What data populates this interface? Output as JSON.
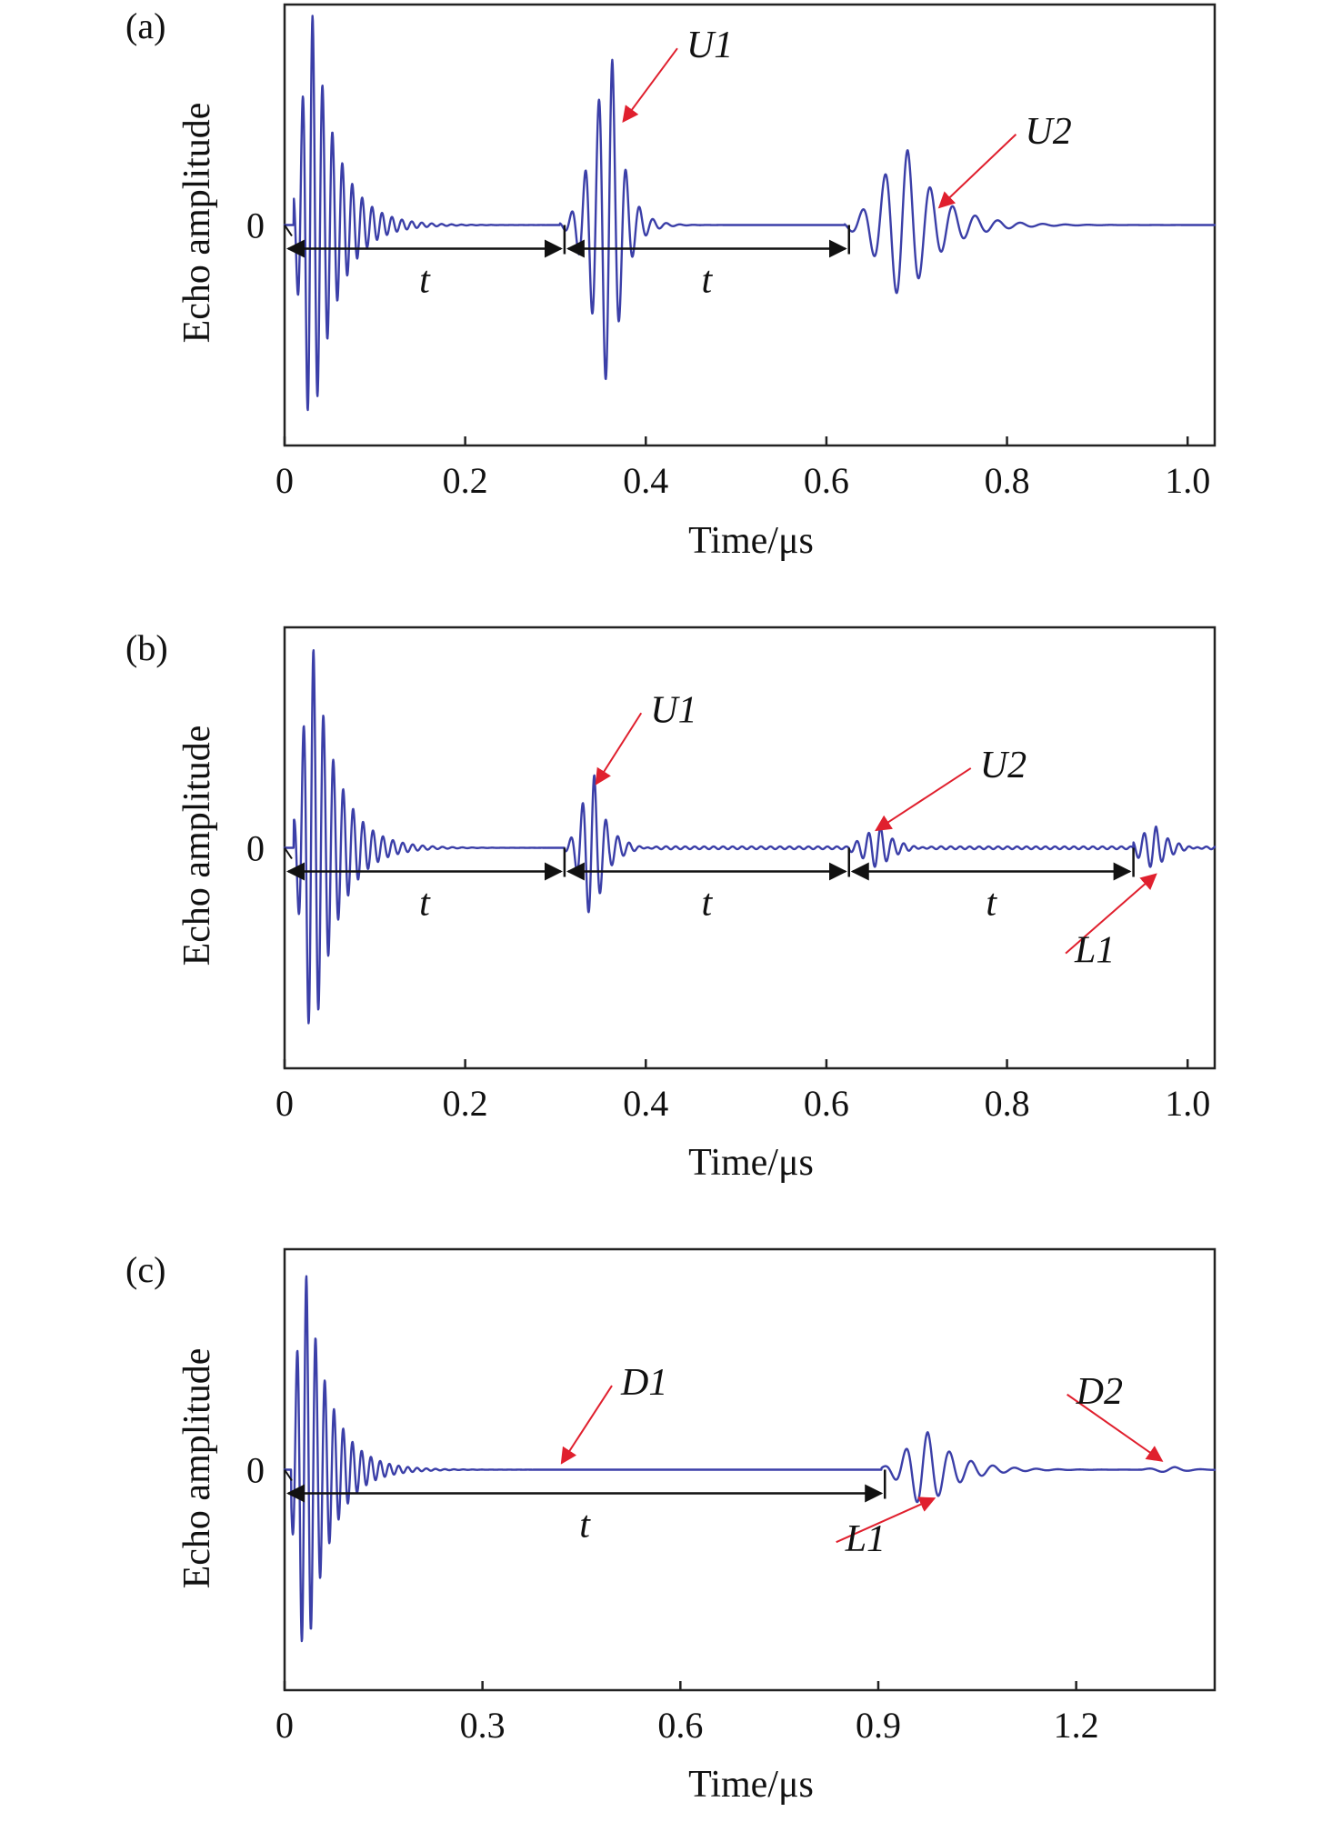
{
  "figure": {
    "background": "#ffffff"
  },
  "chart_data": [
    {
      "type": "line",
      "panel_label": "(a)",
      "xlabel": "Time/μs",
      "ylabel": "Echo amplitude",
      "xlim": [
        0,
        1.03
      ],
      "ylim": [
        -1.0,
        1.0
      ],
      "xticks": [
        0,
        0.2,
        0.4,
        0.6,
        0.8,
        1.0
      ],
      "xtick_labels": [
        "0",
        "0.2",
        "0.4",
        "0.6",
        "0.8",
        "1.0"
      ],
      "yticks": [
        0
      ],
      "ytick_labels": [
        "0"
      ],
      "grid": false,
      "series": [
        {
          "color": "#3b3fa8",
          "packets": [
            {
              "t0": 0.01,
              "t_peak": 0.031,
              "period": 0.011,
              "width": 0.011,
              "amp": 0.95,
              "tail": 0.06
            },
            {
              "t0": 0.305,
              "t_peak": 0.363,
              "period": 0.015,
              "width": 0.02,
              "amp": 0.75,
              "tail": 0.03
            },
            {
              "t0": 0.62,
              "t_peak": 0.69,
              "period": 0.025,
              "width": 0.028,
              "amp": 0.34,
              "tail": 0.08
            }
          ],
          "noise_amp": 0.0,
          "noise_from": 0.0
        }
      ],
      "intervals": [
        {
          "x0": 0.0,
          "x1": 0.31,
          "label": "t"
        },
        {
          "x0": 0.31,
          "x1": 0.625,
          "label": "t"
        }
      ],
      "annotations": [
        {
          "text": "U1",
          "x": 0.375,
          "y": 0.47,
          "text_x": 0.445,
          "text_y": 0.76
        },
        {
          "text": "U2",
          "x": 0.725,
          "y": 0.08,
          "text_x": 0.82,
          "text_y": 0.37
        }
      ]
    },
    {
      "type": "line",
      "panel_label": "(b)",
      "xlabel": "Time/μs",
      "ylabel": "Echo amplitude",
      "xlim": [
        0,
        1.03
      ],
      "ylim": [
        -1.0,
        1.0
      ],
      "xticks": [
        0,
        0.2,
        0.4,
        0.6,
        0.8,
        1.0
      ],
      "xtick_labels": [
        "0",
        "0.2",
        "0.4",
        "0.6",
        "0.8",
        "1.0"
      ],
      "yticks": [
        0
      ],
      "ytick_labels": [
        "0"
      ],
      "grid": false,
      "series": [
        {
          "color": "#3b3fa8",
          "packets": [
            {
              "t0": 0.01,
              "t_peak": 0.032,
              "period": 0.011,
              "width": 0.011,
              "amp": 0.9,
              "tail": 0.06
            },
            {
              "t0": 0.31,
              "t_peak": 0.343,
              "period": 0.013,
              "width": 0.013,
              "amp": 0.33,
              "tail": 0.03
            },
            {
              "t0": 0.625,
              "t_peak": 0.66,
              "period": 0.013,
              "width": 0.016,
              "amp": 0.1,
              "tail": 0.03
            },
            {
              "t0": 0.94,
              "t_peak": 0.965,
              "period": 0.013,
              "width": 0.016,
              "amp": 0.1,
              "tail": 0.03
            }
          ],
          "noise_amp": 0.006,
          "noise_from": 0.36
        }
      ],
      "intervals": [
        {
          "x0": 0.0,
          "x1": 0.31,
          "label": "t"
        },
        {
          "x0": 0.31,
          "x1": 0.625,
          "label": "t"
        },
        {
          "x0": 0.625,
          "x1": 0.94,
          "label": "t"
        }
      ],
      "annotations": [
        {
          "text": "U1",
          "x": 0.345,
          "y": 0.29,
          "text_x": 0.405,
          "text_y": 0.57
        },
        {
          "text": "U2",
          "x": 0.655,
          "y": 0.08,
          "text_x": 0.77,
          "text_y": 0.32
        },
        {
          "text": "L1",
          "x": 0.965,
          "y": -0.12,
          "text_x": 0.875,
          "text_y": -0.52
        }
      ]
    },
    {
      "type": "line",
      "panel_label": "(c)",
      "xlabel": "Time/μs",
      "ylabel": "Echo amplitude",
      "xlim": [
        0,
        1.41
      ],
      "ylim": [
        -1.0,
        1.0
      ],
      "xticks": [
        0,
        0.3,
        0.6,
        0.9,
        1.2
      ],
      "xtick_labels": [
        "0",
        "0.3",
        "0.6",
        "0.9",
        "1.2"
      ],
      "yticks": [
        0
      ],
      "ytick_labels": [
        "0"
      ],
      "grid": false,
      "series": [
        {
          "color": "#3b3fa8",
          "packets": [
            {
              "t0": 0.01,
              "t_peak": 0.033,
              "period": 0.014,
              "width": 0.014,
              "amp": 0.88,
              "tail": 0.08
            },
            {
              "t0": 0.905,
              "t_peak": 0.975,
              "period": 0.033,
              "width": 0.03,
              "amp": 0.17,
              "tail": 0.1
            },
            {
              "t0": 1.3,
              "t_peak": 1.35,
              "period": 0.04,
              "width": 0.03,
              "amp": 0.012,
              "tail": 0.05
            }
          ],
          "noise_amp": 0.0,
          "noise_from": 0.0
        }
      ],
      "intervals": [
        {
          "x0": 0.0,
          "x1": 0.91,
          "label": "t"
        }
      ],
      "annotations": [
        {
          "text": "D1",
          "x": 0.42,
          "y": 0.03,
          "text_x": 0.51,
          "text_y": 0.34
        },
        {
          "text": "L1",
          "x": 0.985,
          "y": -0.13,
          "text_x": 0.85,
          "text_y": -0.37
        },
        {
          "text": "D2",
          "x": 1.33,
          "y": 0.04,
          "text_x": 1.2,
          "text_y": 0.3
        }
      ]
    }
  ]
}
